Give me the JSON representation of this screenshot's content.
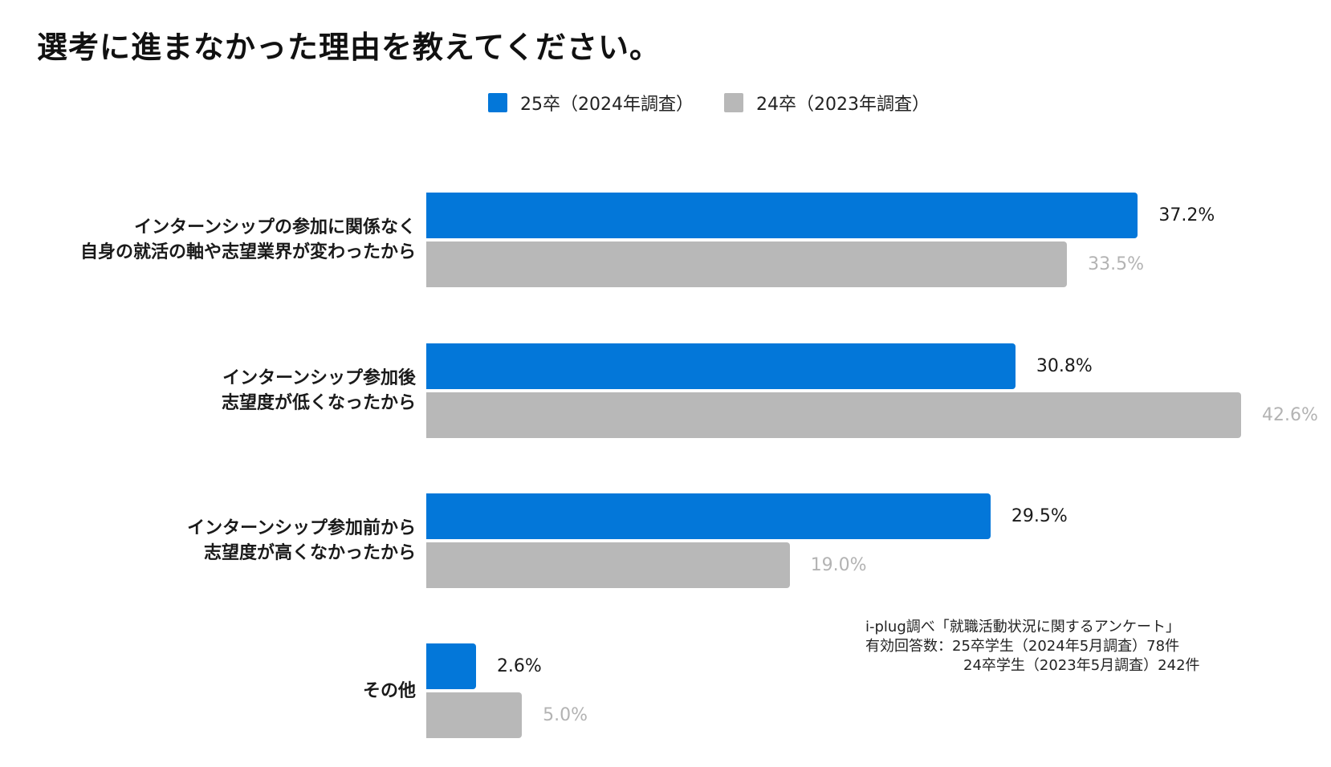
{
  "chart_data": {
    "type": "bar",
    "orientation": "horizontal",
    "title": "選考に進まなかった理由を教えてください。",
    "categories": [
      [
        "インターンシップの参加に関係なく",
        "自身の就活の軸や志望業界が変わったから"
      ],
      [
        "インターンシップ参加後",
        "志望度が低くなったから"
      ],
      [
        "インターンシップ参加前から",
        "志望度が高くなかったから"
      ],
      [
        "その他"
      ]
    ],
    "series": [
      {
        "name": "25卒（2024年調査）",
        "color": "#0377d9",
        "label_color": "#1a1a1a",
        "values": [
          37.2,
          30.8,
          29.5,
          2.6
        ],
        "labels": [
          "37.2%",
          "30.8%",
          "29.5%",
          "2.6%"
        ]
      },
      {
        "name": "24卒（2023年調査）",
        "color": "#b8b8b8",
        "label_color": "#b3b3b3",
        "values": [
          33.5,
          42.6,
          19.0,
          5.0
        ],
        "labels": [
          "33.5%",
          "42.6%",
          "19.0%",
          "5.0%"
        ]
      }
    ],
    "xlim": [
      0,
      45
    ],
    "xlabel": "",
    "ylabel": "",
    "grid": false,
    "legend": "top-center"
  },
  "note": {
    "line1": "i-plug調べ「就職活動状況に関するアンケート」",
    "line2": "有効回答数：25卒学生（2024年5月調査）78件",
    "line3": "24卒学生（2023年5月調査）242件"
  }
}
